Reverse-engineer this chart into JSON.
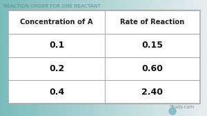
{
  "title": "REACTION ORDER FOR ONE REACTANT",
  "title_color": "#5a9090",
  "bg_left_color": "#7abcbc",
  "bg_right_color": "#e8eef0",
  "table_bg": "#ffffff",
  "table_border_color": "#aaaaaa",
  "col_headers": [
    "Concentration of A",
    "Rate of Reaction"
  ],
  "rows": [
    [
      "0.1",
      "0.15"
    ],
    [
      "0.2",
      "0.60"
    ],
    [
      "0.4",
      "2.40"
    ]
  ],
  "header_fontsize": 7.2,
  "data_fontsize": 9.0,
  "title_fontsize": 5.2,
  "studycom_color": "#888888"
}
